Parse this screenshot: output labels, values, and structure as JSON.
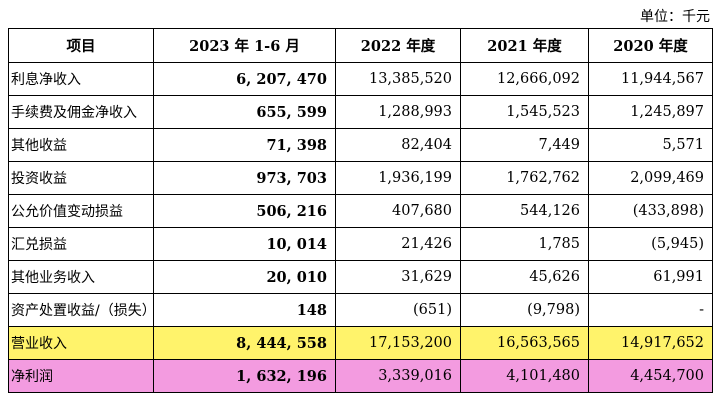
{
  "unit_label": "单位：千元",
  "headers": [
    "项目",
    "2023 年 1-6 月",
    "2022 年度",
    "2021 年度",
    "2020 年度"
  ],
  "rows": [
    {
      "label": "利息净收入",
      "values": [
        "6, 207, 470",
        "13,385,520",
        "12,666,092",
        "11,944,567"
      ]
    },
    {
      "label": "手续费及佣金净收入",
      "values": [
        "655, 599",
        "1,288,993",
        "1,545,523",
        "1,245,897"
      ]
    },
    {
      "label": "其他收益",
      "values": [
        "71, 398",
        "82,404",
        "7,449",
        "5,571"
      ]
    },
    {
      "label": "投资收益",
      "values": [
        "973, 703",
        "1,936,199",
        "1,762,762",
        "2,099,469"
      ]
    },
    {
      "label": "公允价值变动损益",
      "values": [
        "506, 216",
        "407,680",
        "544,126",
        "(433,898)"
      ]
    },
    {
      "label": "汇兑损益",
      "values": [
        "10, 014",
        "21,426",
        "1,785",
        "(5,945)"
      ]
    },
    {
      "label": "其他业务收入",
      "values": [
        "20, 010",
        "31,629",
        "45,626",
        "61,991"
      ]
    },
    {
      "label": "资产处置收益/（损失）",
      "values": [
        "148",
        "(651)",
        "(9,798)",
        "-"
      ]
    },
    {
      "label": "营业收入",
      "values": [
        "8, 444, 558",
        "17,153,200",
        "16,563,565",
        "14,917,652"
      ],
      "highlight": "yellow"
    },
    {
      "label": "净利润",
      "values": [
        "1, 632, 196",
        "3,339,016",
        "4,101,480",
        "4,454,700"
      ],
      "highlight": "pink"
    }
  ],
  "colors": {
    "yellow_highlight": "#fff36b",
    "pink_highlight": "#f39be0"
  }
}
